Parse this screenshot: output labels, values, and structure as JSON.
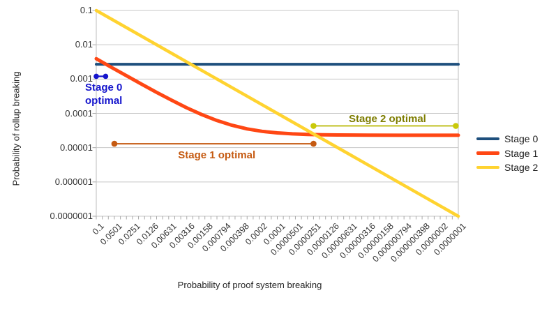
{
  "chart_data": {
    "type": "line",
    "x_scale": "log",
    "y_scale": "log",
    "xlabel": "Probability of proof system breaking",
    "ylabel": "Probability of rollup breaking",
    "xlim": [
      0.1,
      1e-07
    ],
    "ylim": [
      1e-07,
      0.1
    ],
    "grid": "horizontal",
    "legend_position": "right",
    "x_tick_labels": [
      "0.1",
      "0.0501",
      "0.0251",
      "0.0126",
      "0.00631",
      "0.00316",
      "0.00158",
      "0.000794",
      "0.000398",
      "0.0002",
      "0.0001",
      "0.0000501",
      "0.0000251",
      "0.0000126",
      "0.00000631",
      "0.00000316",
      "0.00000158",
      "0.000000794",
      "0.000000398",
      "0.0000002",
      "0.0000001"
    ],
    "y_tick_labels": [
      "0.1",
      "0.01",
      "0.001",
      "0.0001",
      "0.00001",
      "0.000001",
      "0.0000001"
    ],
    "series": [
      {
        "name": "Stage 0",
        "color": "#1e4f7d",
        "stroke_width": 4,
        "points": [
          [
            0.1,
            0.0027
          ],
          [
            1e-07,
            0.0027
          ]
        ]
      },
      {
        "name": "Stage 1",
        "color": "#ff4714",
        "stroke_width": 5,
        "points": [
          [
            0.1,
            0.00392
          ],
          [
            0.0562,
            0.0022
          ],
          [
            0.0316,
            0.00125
          ],
          [
            0.0178,
            0.000711
          ],
          [
            0.01,
            0.00041
          ],
          [
            0.00562,
            0.000241
          ],
          [
            0.00316,
            0.000145
          ],
          [
            0.00178,
            9.18e-05
          ],
          [
            0.001,
            6.17e-05
          ],
          [
            0.000562,
            4.48e-05
          ],
          [
            0.000316,
            3.52e-05
          ],
          [
            0.000178,
            2.99e-05
          ],
          [
            0.0001,
            2.69e-05
          ],
          [
            5.62e-05,
            2.52e-05
          ],
          [
            3.16e-05,
            2.42e-05
          ],
          [
            1.78e-05,
            2.37e-05
          ],
          [
            1e-05,
            2.34e-05
          ],
          [
            3.16e-06,
            2.31e-05
          ],
          [
            1e-06,
            2.3e-05
          ],
          [
            3.16e-07,
            2.3e-05
          ],
          [
            1e-07,
            2.3e-05
          ]
        ]
      },
      {
        "name": "Stage 2",
        "color": "#ffd330",
        "stroke_width": 4.5,
        "points": [
          [
            0.1,
            0.1
          ],
          [
            1e-07,
            1e-07
          ]
        ]
      }
    ],
    "annotations": [
      {
        "id": "stage0-optimal",
        "label_lines": [
          "Stage 0",
          "optimal"
        ],
        "line_color": "#1414cc",
        "dot_color": "#1414cc",
        "text_color": "#1414cc",
        "x_start": 0.1,
        "x_end": 0.07,
        "y": 0.0012,
        "label_placement": "below",
        "line_width": 2.2,
        "dot_radius": 3.8
      },
      {
        "id": "stage1-optimal",
        "label_lines": [
          "Stage 1 optimal"
        ],
        "line_color": "#c55a11",
        "dot_color": "#c55a11",
        "text_color": "#c55a11",
        "x_start": 0.0501,
        "x_end": 2.51e-05,
        "y": 1.3e-05,
        "label_placement": "below",
        "line_width": 2,
        "dot_radius": 4.3
      },
      {
        "id": "stage2-optimal",
        "label_lines": [
          "Stage 2 optimal"
        ],
        "line_color": "#b8b800",
        "dot_color": "#c9c909",
        "text_color": "#7e7d00",
        "x_start": 2.51e-05,
        "x_end": 1.1e-07,
        "y": 4.3e-05,
        "label_placement": "above",
        "line_width": 1.8,
        "dot_radius": 4.3
      }
    ],
    "colors": {
      "gridline": "#c7c7c7",
      "plot_border": "#bdbdbd",
      "tick": "#a8a8a8",
      "tick_label": "#333333",
      "axis_title": "#222222",
      "legend_text": "#212121"
    }
  }
}
